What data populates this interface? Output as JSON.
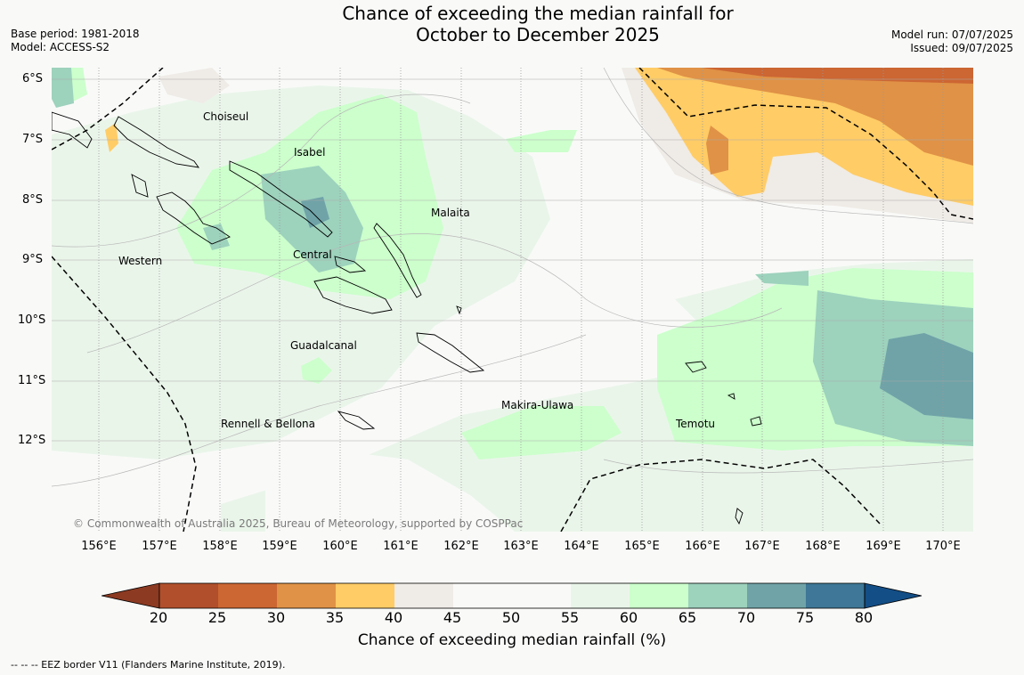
{
  "title": {
    "line1": "Chance of exceeding the median rainfall for",
    "line2": "October to December 2025"
  },
  "meta_left": {
    "base_period": "Base period: 1981-2018",
    "model": "Model: ACCESS-S2"
  },
  "meta_right": {
    "model_run": "Model run: 07/07/2025",
    "issued": "Issued: 09/07/2025"
  },
  "map": {
    "latitude_labels": [
      "6°S",
      "7°S",
      "8°S",
      "9°S",
      "10°S",
      "11°S",
      "12°S"
    ],
    "longitude_labels": [
      "156°E",
      "157°E",
      "158°E",
      "159°E",
      "160°E",
      "161°E",
      "162°E",
      "163°E",
      "164°E",
      "165°E",
      "166°E",
      "167°E",
      "168°E",
      "169°E",
      "170°E"
    ],
    "places": {
      "choiseul": "Choiseul",
      "isabel": "Isabel",
      "malaita": "Malaita",
      "western": "Western",
      "central": "Central",
      "guadalcanal": "Guadalcanal",
      "makira_ulawa": "Makira-Ulawa",
      "temotu": "Temotu",
      "rennell_bellona": "Rennell & Bellona"
    },
    "copyright": "© Commonwealth of Australia 2025, Bureau of Meteorology, supported by COSPPac",
    "eez_line_color": "#000000",
    "fill_colors": {
      "25_30": "#cc6633",
      "30_35": "#e09246",
      "35_40": "#ffcc66",
      "40_45": "#efebe6",
      "45_55": "#f9faf8",
      "55_60": "#eaf5ea",
      "60_65": "#ccffcc",
      "65_70": "#9dd2bd",
      "70_75": "#6fa3a8"
    }
  },
  "colorbar": {
    "ticks": [
      "20",
      "25",
      "30",
      "35",
      "40",
      "45",
      "50",
      "55",
      "60",
      "65",
      "70",
      "75",
      "80"
    ],
    "colors": [
      "#b14f2c",
      "#cc6633",
      "#e09246",
      "#ffcc66",
      "#efebe6",
      "#f9faf8",
      "#f9faf8",
      "#eaf5ea",
      "#ccffcc",
      "#9dd2bd",
      "#6fa3a8",
      "#3e7797"
    ],
    "under_color": "#8c3a22",
    "over_color": "#134e86",
    "label": "Chance of exceeding median rainfall (%)"
  },
  "footnote": "--  --  -- EEZ border V11 (Flanders Marine Institute, 2019)."
}
